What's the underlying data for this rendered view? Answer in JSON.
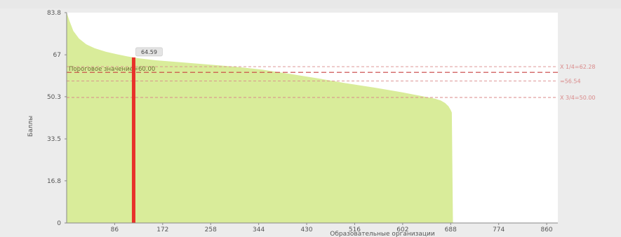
{
  "chart_data": {
    "type": "area",
    "title": "",
    "xlabel": "Образовательные организации",
    "ylabel": "Баллы",
    "xlim": [
      0,
      880
    ],
    "ylim": [
      0,
      83.8
    ],
    "x_ticks": [
      "86",
      "172",
      "258",
      "344",
      "430",
      "516",
      "602",
      "688",
      "774",
      "860"
    ],
    "x_tick_values": [
      86,
      172,
      258,
      344,
      430,
      516,
      602,
      688,
      774,
      860
    ],
    "y_ticks": [
      "0",
      "16.8",
      "33.5",
      "50.3",
      "67",
      "83.8"
    ],
    "y_tick_values": [
      0,
      16.8,
      33.5,
      50.3,
      67,
      83.8
    ],
    "grid": false,
    "series": [
      {
        "color": "#d9ec9a",
        "x": [
          0,
          5,
          12,
          22,
          35,
          50,
          70,
          90,
          110,
          130,
          160,
          200,
          250,
          300,
          350,
          400,
          450,
          500,
          550,
          600,
          640,
          660,
          670,
          678,
          684,
          688,
          690,
          692
        ],
        "y": [
          83.8,
          80.5,
          76.5,
          73.5,
          71.2,
          69.6,
          68.2,
          67.2,
          66.3,
          65.6,
          64.8,
          64.1,
          63.2,
          62.3,
          61.1,
          59.4,
          57.6,
          55.7,
          54.0,
          52.1,
          50.4,
          49.5,
          48.8,
          47.8,
          46.5,
          45.0,
          44.0,
          0
        ]
      }
    ],
    "marker": {
      "x": 120,
      "label": "64.59",
      "color": "#e8312a"
    },
    "reference_lines": [
      {
        "y": 62.28,
        "label": "Х 1/4=62.28",
        "color": "#d98a8a",
        "style": "dashed"
      },
      {
        "y": 60.0,
        "label": "Пороговое значение=60.00",
        "color": "#c94040",
        "style": "dashed"
      },
      {
        "y": 56.54,
        "label": "=56.54",
        "color": "#d98a8a",
        "style": "dashed"
      },
      {
        "y": 50.0,
        "label": "Х 3/4=50.00",
        "color": "#d98a8a",
        "style": "dashed"
      }
    ]
  }
}
